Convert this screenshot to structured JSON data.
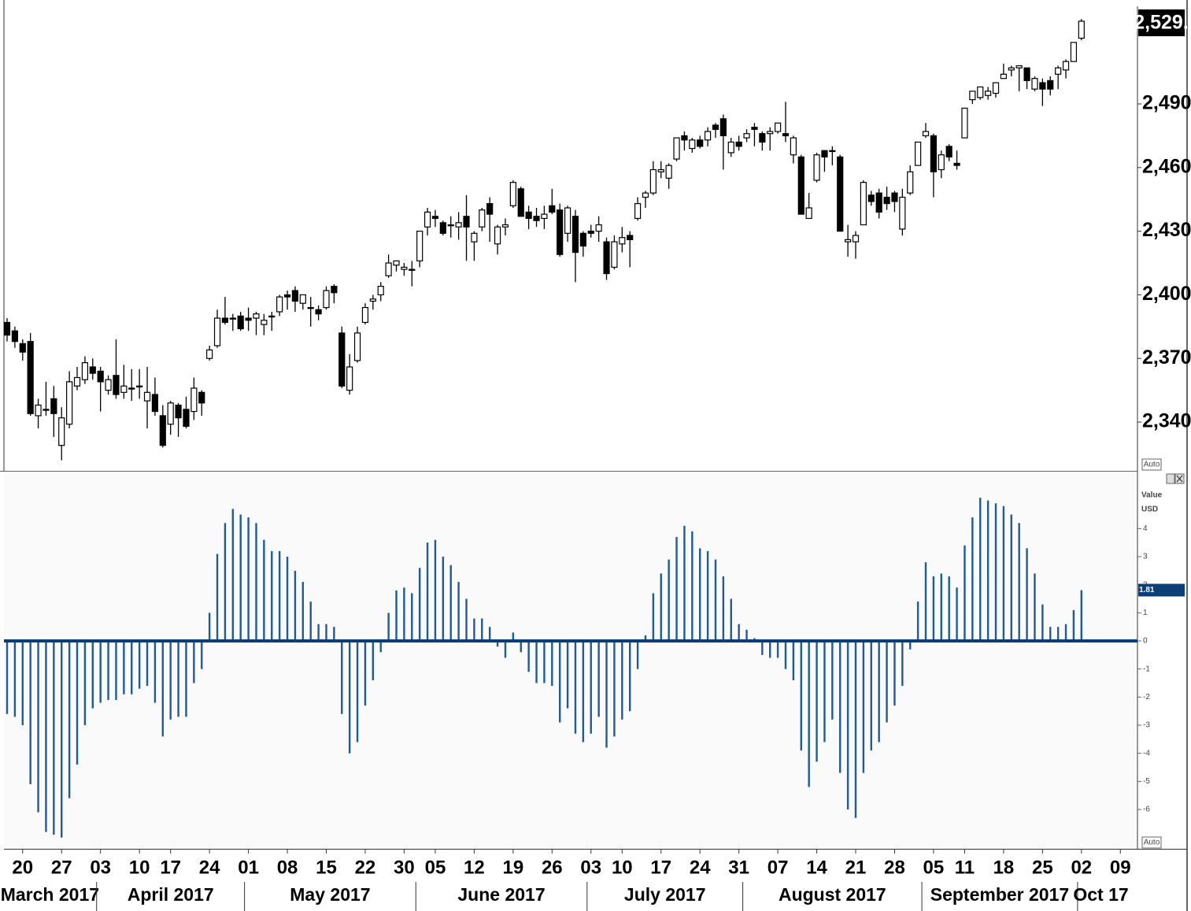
{
  "chart_data": [
    {
      "type": "candlestick",
      "x": [
        "2017-03-16",
        "2017-03-17",
        "2017-03-20",
        "2017-03-21",
        "2017-03-22",
        "2017-03-23",
        "2017-03-24",
        "2017-03-27",
        "2017-03-28",
        "2017-03-29",
        "2017-03-30",
        "2017-03-31",
        "2017-04-03",
        "2017-04-04",
        "2017-04-05",
        "2017-04-06",
        "2017-04-07",
        "2017-04-10",
        "2017-04-11",
        "2017-04-12",
        "2017-04-13",
        "2017-04-17",
        "2017-04-18",
        "2017-04-19",
        "2017-04-20",
        "2017-04-21",
        "2017-04-24",
        "2017-04-25",
        "2017-04-26",
        "2017-04-27",
        "2017-04-28",
        "2017-05-01",
        "2017-05-02",
        "2017-05-03",
        "2017-05-04",
        "2017-05-05",
        "2017-05-08",
        "2017-05-09",
        "2017-05-10",
        "2017-05-11",
        "2017-05-12",
        "2017-05-15",
        "2017-05-16",
        "2017-05-17",
        "2017-05-18",
        "2017-05-19",
        "2017-05-22",
        "2017-05-23",
        "2017-05-24",
        "2017-05-25",
        "2017-05-26",
        "2017-05-30",
        "2017-05-31",
        "2017-06-01",
        "2017-06-02",
        "2017-06-05",
        "2017-06-06",
        "2017-06-07",
        "2017-06-08",
        "2017-06-09",
        "2017-06-12",
        "2017-06-13",
        "2017-06-14",
        "2017-06-15",
        "2017-06-16",
        "2017-06-19",
        "2017-06-20",
        "2017-06-21",
        "2017-06-22",
        "2017-06-23",
        "2017-06-26",
        "2017-06-27",
        "2017-06-28",
        "2017-06-29",
        "2017-06-30",
        "2017-07-03",
        "2017-07-05",
        "2017-07-06",
        "2017-07-07",
        "2017-07-10",
        "2017-07-11",
        "2017-07-12",
        "2017-07-13",
        "2017-07-14",
        "2017-07-17",
        "2017-07-18",
        "2017-07-19",
        "2017-07-20",
        "2017-07-21",
        "2017-07-24",
        "2017-07-25",
        "2017-07-26",
        "2017-07-27",
        "2017-07-28",
        "2017-07-31",
        "2017-08-01",
        "2017-08-02",
        "2017-08-03",
        "2017-08-04",
        "2017-08-07",
        "2017-08-08",
        "2017-08-09",
        "2017-08-10",
        "2017-08-11",
        "2017-08-14",
        "2017-08-15",
        "2017-08-16",
        "2017-08-17",
        "2017-08-18",
        "2017-08-21",
        "2017-08-22",
        "2017-08-23",
        "2017-08-24",
        "2017-08-25",
        "2017-08-28",
        "2017-08-29",
        "2017-08-30",
        "2017-08-31",
        "2017-09-01",
        "2017-09-05",
        "2017-09-06",
        "2017-09-07",
        "2017-09-08",
        "2017-09-11",
        "2017-09-12",
        "2017-09-13",
        "2017-09-14",
        "2017-09-15",
        "2017-09-18",
        "2017-09-19",
        "2017-09-20",
        "2017-09-21",
        "2017-09-22",
        "2017-09-25",
        "2017-09-26",
        "2017-09-27",
        "2017-09-28",
        "2017-09-29",
        "2017-10-02"
      ],
      "open": [
        2387,
        2383,
        2377,
        2378,
        2343,
        2346,
        2351,
        2329,
        2339,
        2357,
        2360,
        2366,
        2364,
        2355,
        2362,
        2354,
        2356,
        2357,
        2350,
        2353,
        2343,
        2339,
        2348,
        2346,
        2345,
        2354,
        2370,
        2376,
        2389,
        2389,
        2390,
        2389,
        2389,
        2386,
        2390,
        2392,
        2400,
        2402,
        2396,
        2394,
        2393,
        2394,
        2404,
        2382,
        2355,
        2369,
        2387,
        2397,
        2400,
        2409,
        2414,
        2412,
        2412,
        2416,
        2432,
        2437,
        2434,
        2433,
        2432,
        2437,
        2425,
        2432,
        2443,
        2424,
        2432,
        2442,
        2450,
        2439,
        2437,
        2436,
        2442,
        2440,
        2429,
        2437,
        2429,
        2430,
        2430,
        2425,
        2413,
        2424,
        2428,
        2436,
        2446,
        2448,
        2458,
        2455,
        2464,
        2475,
        2469,
        2473,
        2473,
        2480,
        2483,
        2467,
        2472,
        2474,
        2479,
        2476,
        2476,
        2477,
        2476,
        2466,
        2465,
        2436,
        2454,
        2468,
        2468,
        2465,
        2425,
        2425,
        2433,
        2447,
        2448,
        2446,
        2448,
        2431,
        2448,
        2461,
        2475,
        2475,
        2459,
        2470,
        2462,
        2474,
        2492,
        2493,
        2494,
        2495,
        2502,
        2506,
        2507,
        2507,
        2497,
        2500,
        2501,
        2504,
        2506,
        2510,
        2521
      ],
      "high": [
        2389,
        2385,
        2379,
        2382,
        2351,
        2359,
        2357,
        2347,
        2364,
        2366,
        2371,
        2370,
        2366,
        2362,
        2379,
        2367,
        2365,
        2365,
        2366,
        2361,
        2348,
        2350,
        2349,
        2352,
        2361,
        2355,
        2376,
        2393,
        2399,
        2391,
        2392,
        2394,
        2392,
        2391,
        2392,
        2400,
        2402,
        2404,
        2400,
        2399,
        2395,
        2404,
        2405,
        2385,
        2372,
        2385,
        2396,
        2400,
        2406,
        2419,
        2416,
        2415,
        2416,
        2430,
        2441,
        2440,
        2435,
        2437,
        2439,
        2447,
        2430,
        2441,
        2446,
        2433,
        2436,
        2454,
        2451,
        2442,
        2441,
        2442,
        2450,
        2443,
        2442,
        2440,
        2430,
        2433,
        2437,
        2427,
        2428,
        2432,
        2430,
        2446,
        2449,
        2463,
        2463,
        2462,
        2474,
        2477,
        2474,
        2475,
        2479,
        2481,
        2485,
        2474,
        2475,
        2478,
        2481,
        2477,
        2479,
        2481,
        2491,
        2475,
        2466,
        2448,
        2467,
        2468,
        2470,
        2466,
        2433,
        2430,
        2454,
        2449,
        2450,
        2451,
        2449,
        2450,
        2461,
        2472,
        2481,
        2476,
        2468,
        2471,
        2468,
        2488,
        2496,
        2498,
        2498,
        2500,
        2509,
        2508,
        2508,
        2507,
        2503,
        2502,
        2503,
        2508,
        2511,
        2519,
        2530
      ],
      "low": [
        2378,
        2375,
        2369,
        2343,
        2337,
        2343,
        2333,
        2322,
        2337,
        2355,
        2358,
        2360,
        2345,
        2353,
        2351,
        2351,
        2350,
        2351,
        2337,
        2343,
        2328,
        2334,
        2333,
        2337,
        2341,
        2343,
        2369,
        2375,
        2386,
        2383,
        2383,
        2383,
        2381,
        2381,
        2383,
        2390,
        2393,
        2392,
        2393,
        2385,
        2388,
        2393,
        2396,
        2356,
        2353,
        2368,
        2386,
        2393,
        2397,
        2408,
        2411,
        2409,
        2404,
        2413,
        2428,
        2432,
        2428,
        2427,
        2426,
        2416,
        2416,
        2430,
        2425,
        2419,
        2428,
        2441,
        2437,
        2431,
        2432,
        2431,
        2438,
        2418,
        2425,
        2406,
        2418,
        2427,
        2425,
        2407,
        2412,
        2420,
        2413,
        2435,
        2441,
        2447,
        2455,
        2450,
        2463,
        2468,
        2467,
        2469,
        2470,
        2474,
        2459,
        2465,
        2468,
        2472,
        2470,
        2468,
        2468,
        2476,
        2472,
        2462,
        2438,
        2436,
        2453,
        2458,
        2461,
        2430,
        2418,
        2417,
        2433,
        2442,
        2436,
        2440,
        2439,
        2428,
        2447,
        2461,
        2474,
        2446,
        2455,
        2463,
        2459,
        2474,
        2490,
        2492,
        2492,
        2493,
        2502,
        2503,
        2496,
        2497,
        2496,
        2489,
        2494,
        2497,
        2502,
        2510,
        2520
      ],
      "close": [
        2381,
        2378,
        2373,
        2344,
        2348,
        2346,
        2344,
        2342,
        2359,
        2361,
        2368,
        2363,
        2359,
        2360,
        2353,
        2357,
        2356,
        2357,
        2354,
        2345,
        2329,
        2349,
        2342,
        2338,
        2356,
        2349,
        2374,
        2389,
        2387,
        2389,
        2384,
        2388,
        2391,
        2388,
        2390,
        2399,
        2399,
        2397,
        2400,
        2394,
        2391,
        2402,
        2401,
        2357,
        2366,
        2382,
        2394,
        2398,
        2404,
        2415,
        2416,
        2413,
        2412,
        2430,
        2439,
        2436,
        2429,
        2433,
        2434,
        2432,
        2429,
        2440,
        2438,
        2432,
        2433,
        2453,
        2437,
        2436,
        2435,
        2438,
        2439,
        2419,
        2441,
        2420,
        2423,
        2429,
        2433,
        2410,
        2425,
        2427,
        2426,
        2443,
        2448,
        2459,
        2459,
        2461,
        2474,
        2473,
        2473,
        2470,
        2477,
        2478,
        2475,
        2472,
        2470,
        2476,
        2478,
        2472,
        2477,
        2481,
        2475,
        2474,
        2438,
        2441,
        2466,
        2465,
        2468,
        2430,
        2426,
        2428,
        2453,
        2444,
        2439,
        2443,
        2444,
        2446,
        2458,
        2472,
        2477,
        2458,
        2466,
        2465,
        2461,
        2488,
        2496,
        2498,
        2496,
        2500,
        2504,
        2507,
        2508,
        2501,
        2502,
        2497,
        2497,
        2507,
        2510,
        2519,
        2529
      ],
      "ylim": [
        2317,
        2539
      ],
      "yticks": [
        {
          "value": 2340,
          "label": "2,340"
        },
        {
          "value": 2370,
          "label": "2,370"
        },
        {
          "value": 2400,
          "label": "2,400"
        },
        {
          "value": 2430,
          "label": "2,430"
        },
        {
          "value": 2460,
          "label": "2,460"
        },
        {
          "value": 2490,
          "label": "2,490"
        }
      ],
      "last_value_label": "2,529.",
      "scale_mode": "Auto"
    },
    {
      "type": "bar",
      "values": [
        -2.6,
        -2.7,
        -3.0,
        -5.1,
        -6.1,
        -6.8,
        -6.9,
        -7.0,
        -5.6,
        -4.4,
        -3.0,
        -2.4,
        -2.2,
        -2.1,
        -2.1,
        -1.9,
        -1.9,
        -1.7,
        -1.6,
        -2.2,
        -3.4,
        -2.8,
        -2.7,
        -2.7,
        -1.5,
        -1.0,
        1.0,
        3.1,
        4.2,
        4.7,
        4.5,
        4.4,
        4.2,
        3.6,
        3.2,
        3.2,
        3.0,
        2.5,
        2.1,
        1.4,
        0.6,
        0.6,
        0.5,
        -2.6,
        -4.0,
        -3.6,
        -2.3,
        -1.4,
        -0.4,
        1.0,
        1.8,
        1.9,
        1.7,
        2.6,
        3.5,
        3.6,
        3.0,
        2.7,
        2.1,
        1.5,
        0.8,
        0.8,
        0.5,
        -0.2,
        -0.6,
        0.3,
        -0.4,
        -1.1,
        -1.5,
        -1.5,
        -1.6,
        -2.9,
        -2.4,
        -3.3,
        -3.6,
        -3.3,
        -2.7,
        -3.8,
        -3.4,
        -2.8,
        -2.5,
        -1.0,
        0.2,
        1.7,
        2.4,
        2.9,
        3.7,
        4.1,
        3.9,
        3.3,
        3.2,
        2.9,
        2.3,
        1.5,
        0.6,
        0.4,
        0.1,
        -0.5,
        -0.6,
        -0.6,
        -1.0,
        -1.4,
        -3.9,
        -5.2,
        -4.3,
        -3.6,
        -2.8,
        -4.7,
        -6.0,
        -6.3,
        -4.7,
        -3.9,
        -3.6,
        -2.9,
        -2.3,
        -1.6,
        -0.3,
        1.4,
        2.8,
        2.3,
        2.4,
        2.3,
        1.9,
        3.4,
        4.4,
        5.1,
        5.0,
        4.9,
        4.8,
        4.5,
        4.2,
        3.3,
        2.4,
        1.3,
        0.5,
        0.5,
        0.6,
        1.1,
        1.81
      ],
      "color": "#1f5a9a",
      "zero_line_color": "#0b3d78",
      "ylim": [
        -7.4,
        6
      ],
      "yticks": [
        -6,
        -5,
        -4,
        -3,
        -2,
        -1,
        0,
        1,
        2,
        3,
        4
      ],
      "y_label": "Value",
      "unit": "USD",
      "last_value_label": "1.81",
      "scale_mode": "Auto",
      "xticks": [
        {
          "value": "2017-03-20",
          "label": "20"
        },
        {
          "value": "2017-03-27",
          "label": "27"
        },
        {
          "value": "2017-04-03",
          "label": "03"
        },
        {
          "value": "2017-04-10",
          "label": "10"
        },
        {
          "value": "2017-04-17",
          "label": "17"
        },
        {
          "value": "2017-04-24",
          "label": "24"
        },
        {
          "value": "2017-05-01",
          "label": "01"
        },
        {
          "value": "2017-05-08",
          "label": "08"
        },
        {
          "value": "2017-05-15",
          "label": "15"
        },
        {
          "value": "2017-05-22",
          "label": "22"
        },
        {
          "value": "2017-05-30",
          "label": "30"
        },
        {
          "value": "2017-06-05",
          "label": "05"
        },
        {
          "value": "2017-06-12",
          "label": "12"
        },
        {
          "value": "2017-06-19",
          "label": "19"
        },
        {
          "value": "2017-06-26",
          "label": "26"
        },
        {
          "value": "2017-07-03",
          "label": "03"
        },
        {
          "value": "2017-07-10",
          "label": "10"
        },
        {
          "value": "2017-07-17",
          "label": "17"
        },
        {
          "value": "2017-07-24",
          "label": "24"
        },
        {
          "value": "2017-07-31",
          "label": "31"
        },
        {
          "value": "2017-08-07",
          "label": "07"
        },
        {
          "value": "2017-08-14",
          "label": "14"
        },
        {
          "value": "2017-08-21",
          "label": "21"
        },
        {
          "value": "2017-08-28",
          "label": "28"
        },
        {
          "value": "2017-09-05",
          "label": "05"
        },
        {
          "value": "2017-09-11",
          "label": "11"
        },
        {
          "value": "2017-09-18",
          "label": "18"
        },
        {
          "value": "2017-09-25",
          "label": "25"
        },
        {
          "value": "2017-10-02",
          "label": "02"
        },
        {
          "value": "2017-10-09",
          "label": "09"
        }
      ],
      "months": [
        {
          "value": "2017-03",
          "label": "March 2017"
        },
        {
          "value": "2017-04",
          "label": "April 2017"
        },
        {
          "value": "2017-05",
          "label": "May 2017"
        },
        {
          "value": "2017-06",
          "label": "June 2017"
        },
        {
          "value": "2017-07",
          "label": "July 2017"
        },
        {
          "value": "2017-08",
          "label": "August 2017"
        },
        {
          "value": "2017-09",
          "label": "September 2017"
        },
        {
          "value": "2017-10",
          "label": "Oct 17"
        }
      ]
    }
  ]
}
